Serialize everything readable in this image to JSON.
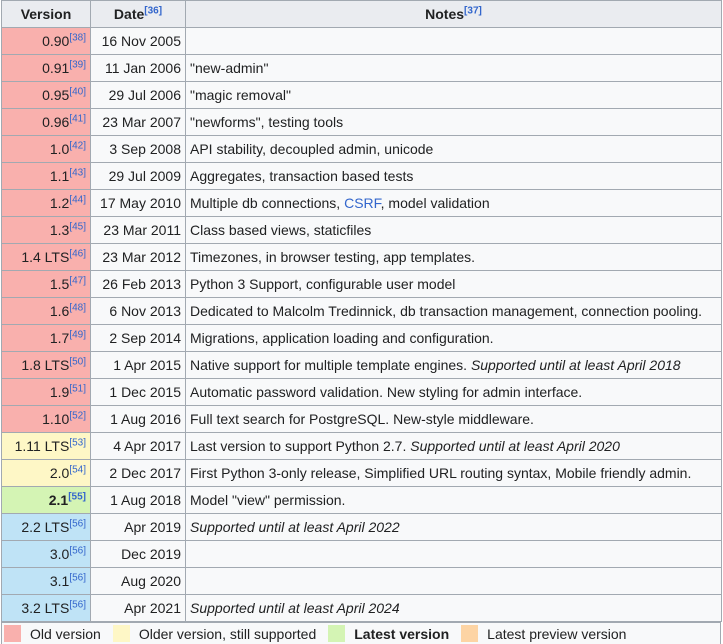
{
  "headers": {
    "version": "Version",
    "date": "Date",
    "date_ref": "[36]",
    "notes": "Notes",
    "notes_ref": "[37]"
  },
  "rows": [
    {
      "version": "0.90",
      "ref": "[38]",
      "date": "16 Nov 2005",
      "notes": "",
      "status": "old"
    },
    {
      "version": "0.91",
      "ref": "[39]",
      "date": "11 Jan 2006",
      "notes": "\"new-admin\"",
      "status": "old"
    },
    {
      "version": "0.95",
      "ref": "[40]",
      "date": "29 Jul 2006",
      "notes": "\"magic removal\"",
      "status": "old"
    },
    {
      "version": "0.96",
      "ref": "[41]",
      "date": "23 Mar 2007",
      "notes": "\"newforms\", testing tools",
      "status": "old"
    },
    {
      "version": "1.0",
      "ref": "[42]",
      "date": "3 Sep 2008",
      "notes": "API stability, decoupled admin, unicode",
      "status": "old"
    },
    {
      "version": "1.1",
      "ref": "[43]",
      "date": "29 Jul 2009",
      "notes": "Aggregates, transaction based tests",
      "status": "old"
    },
    {
      "version": "1.2",
      "ref": "[44]",
      "date": "17 May 2010",
      "notes_pre": "Multiple db connections, ",
      "notes_link": "CSRF",
      "notes_post": ", model validation",
      "status": "old"
    },
    {
      "version": "1.3",
      "ref": "[45]",
      "date": "23 Mar 2011",
      "notes": "Class based views, staticfiles",
      "status": "old"
    },
    {
      "version": "1.4 LTS",
      "ref": "[46]",
      "date": "23 Mar 2012",
      "notes": "Timezones, in browser testing, app templates.",
      "status": "old"
    },
    {
      "version": "1.5",
      "ref": "[47]",
      "date": "26 Feb 2013",
      "notes": "Python 3 Support, configurable user model",
      "status": "old"
    },
    {
      "version": "1.6",
      "ref": "[48]",
      "date": "6 Nov 2013",
      "notes": "Dedicated to Malcolm Tredinnick, db transaction management, connection pooling.",
      "status": "old"
    },
    {
      "version": "1.7",
      "ref": "[49]",
      "date": "2 Sep 2014",
      "notes": "Migrations, application loading and configuration.",
      "status": "old"
    },
    {
      "version": "1.8 LTS",
      "ref": "[50]",
      "date": "1 Apr 2015",
      "notes": "Native support for multiple template engines. ",
      "notes_italic": "Supported until at least April 2018",
      "status": "old"
    },
    {
      "version": "1.9",
      "ref": "[51]",
      "date": "1 Dec 2015",
      "notes": "Automatic password validation. New styling for admin interface.",
      "status": "old"
    },
    {
      "version": "1.10",
      "ref": "[52]",
      "date": "1 Aug 2016",
      "notes": "Full text search for PostgreSQL. New-style middleware.",
      "status": "old"
    },
    {
      "version": "1.11 LTS",
      "ref": "[53]",
      "date": "4 Apr 2017",
      "notes": "Last version to support Python 2.7. ",
      "notes_italic": "Supported until at least April 2020",
      "status": "older"
    },
    {
      "version": "2.0",
      "ref": "[54]",
      "date": "2 Dec 2017",
      "notes": "First Python 3-only release, Simplified URL routing syntax, Mobile friendly admin.",
      "status": "older"
    },
    {
      "version": "2.1",
      "ref": "[55]",
      "date": "1 Aug 2018",
      "notes": "Model \"view\" permission.",
      "status": "latest"
    },
    {
      "version": "2.2 LTS",
      "ref": "[56]",
      "date": "Apr 2019",
      "notes": "",
      "notes_italic": "Supported until at least April 2022",
      "status": "future"
    },
    {
      "version": "3.0",
      "ref": "[56]",
      "date": "Dec 2019",
      "notes": "",
      "status": "future"
    },
    {
      "version": "3.1",
      "ref": "[56]",
      "date": "Aug 2020",
      "notes": "",
      "status": "future"
    },
    {
      "version": "3.2 LTS",
      "ref": "[56]",
      "date": "Apr 2021",
      "notes": "",
      "notes_italic": "Supported until at least April 2024",
      "status": "future"
    }
  ],
  "legend": [
    {
      "label": "Old version",
      "status": "old",
      "bold": false
    },
    {
      "label": "Older version, still supported",
      "status": "older",
      "bold": false
    },
    {
      "label": "Latest version",
      "status": "latest",
      "bold": true
    },
    {
      "label": "Latest preview version",
      "status": "preview",
      "bold": false
    }
  ],
  "colors": {
    "old": "#f9b0ad",
    "older": "#fef7c6",
    "latest": "#d4f4b4",
    "future": "#bfe3f6",
    "preview": "#fdd4a4"
  }
}
